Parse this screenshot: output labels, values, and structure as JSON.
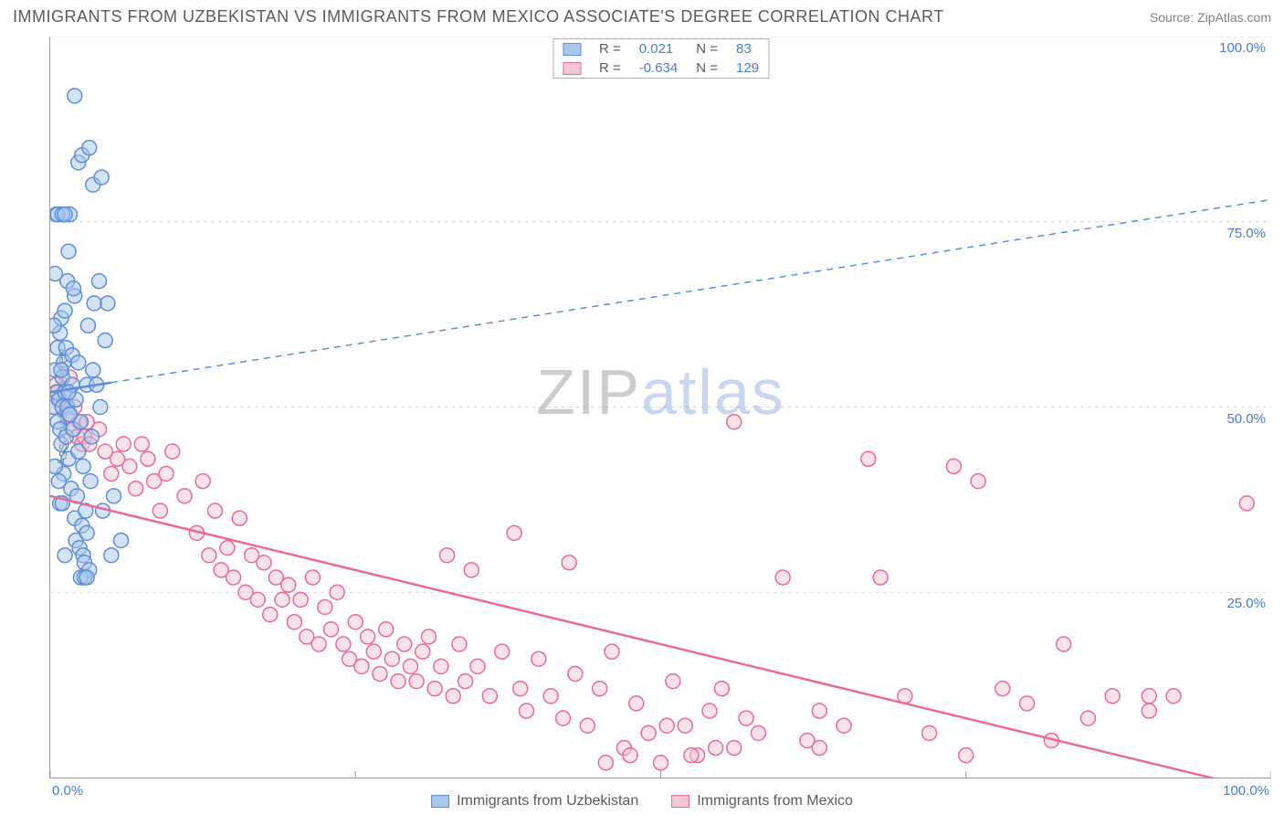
{
  "title": "IMMIGRANTS FROM UZBEKISTAN VS IMMIGRANTS FROM MEXICO ASSOCIATE'S DEGREE CORRELATION CHART",
  "source_prefix": "Source: ",
  "source_name": "ZipAtlas.com",
  "ylabel": "Associate's Degree",
  "watermark_a": "ZIP",
  "watermark_b": "atlas",
  "chart": {
    "type": "scatter",
    "background_color": "#ffffff",
    "grid_color": "#d8d8d8",
    "axis_color": "#999999",
    "tick_label_color": "#4a7bd0",
    "xlim": [
      0,
      100
    ],
    "ylim": [
      0,
      100
    ],
    "xticks": [
      0,
      25,
      50,
      75,
      100
    ],
    "yticks": [
      0,
      25,
      50,
      75,
      100
    ],
    "xtick_labels": [
      "0.0%",
      "",
      "",
      "",
      "100.0%"
    ],
    "ytick_labels": [
      "",
      "25.0%",
      "50.0%",
      "75.0%",
      "100.0%"
    ],
    "marker_radius": 8,
    "marker_stroke_width": 1.5,
    "marker_fill_opacity": 0.25,
    "label_fontsize": 15,
    "title_fontsize": 18
  },
  "series": [
    {
      "name": "Immigrants from Uzbekistan",
      "color_fill": "#a9c6ed",
      "color_stroke": "#5b8fd6",
      "R_label": "R =",
      "R": "0.021",
      "N_label": "N =",
      "N": "83",
      "trend": {
        "x1": 0,
        "y1": 52,
        "x2": 100,
        "y2": 78,
        "dash": "7,6",
        "width": 1.5,
        "solid_until_x": 5
      },
      "points": [
        [
          0.3,
          50
        ],
        [
          0.4,
          55
        ],
        [
          0.5,
          52
        ],
        [
          0.6,
          48
        ],
        [
          0.6,
          58
        ],
        [
          0.7,
          51
        ],
        [
          0.8,
          47
        ],
        [
          0.8,
          60
        ],
        [
          0.9,
          45
        ],
        [
          0.9,
          62
        ],
        [
          1.0,
          50
        ],
        [
          1.0,
          54
        ],
        [
          1.1,
          41
        ],
        [
          1.1,
          56
        ],
        [
          1.2,
          52
        ],
        [
          1.2,
          63
        ],
        [
          1.3,
          46
        ],
        [
          1.3,
          58
        ],
        [
          1.4,
          50
        ],
        [
          1.4,
          67
        ],
        [
          1.5,
          43
        ],
        [
          1.5,
          71
        ],
        [
          1.6,
          49
        ],
        [
          1.6,
          76
        ],
        [
          1.7,
          39
        ],
        [
          1.8,
          53
        ],
        [
          1.8,
          57
        ],
        [
          1.9,
          47
        ],
        [
          2.0,
          35
        ],
        [
          2.0,
          65
        ],
        [
          2.1,
          32
        ],
        [
          2.1,
          51
        ],
        [
          2.2,
          38
        ],
        [
          2.3,
          44
        ],
        [
          2.3,
          56
        ],
        [
          2.4,
          31
        ],
        [
          2.5,
          48
        ],
        [
          2.6,
          34
        ],
        [
          2.7,
          42
        ],
        [
          2.7,
          30
        ],
        [
          2.8,
          29
        ],
        [
          2.9,
          36
        ],
        [
          3.0,
          53
        ],
        [
          3.0,
          33
        ],
        [
          3.1,
          61
        ],
        [
          3.2,
          28
        ],
        [
          3.3,
          40
        ],
        [
          3.4,
          46
        ],
        [
          3.5,
          55
        ],
        [
          3.6,
          64
        ],
        [
          0.5,
          76
        ],
        [
          0.6,
          76
        ],
        [
          1.0,
          76
        ],
        [
          1.2,
          76
        ],
        [
          2.0,
          92
        ],
        [
          2.3,
          83
        ],
        [
          2.6,
          84
        ],
        [
          3.2,
          85
        ],
        [
          3.5,
          80
        ],
        [
          4.0,
          67
        ],
        [
          4.1,
          50
        ],
        [
          4.3,
          36
        ],
        [
          4.5,
          59
        ],
        [
          4.7,
          64
        ],
        [
          5.0,
          30
        ],
        [
          5.2,
          38
        ],
        [
          5.8,
          32
        ],
        [
          2.5,
          27
        ],
        [
          2.8,
          27
        ],
        [
          3.0,
          27
        ],
        [
          0.4,
          42
        ],
        [
          0.7,
          40
        ],
        [
          0.8,
          37
        ],
        [
          1.0,
          37
        ],
        [
          1.2,
          30
        ],
        [
          1.5,
          52
        ],
        [
          1.9,
          66
        ],
        [
          0.3,
          61
        ],
        [
          0.4,
          68
        ],
        [
          4.2,
          81
        ],
        [
          3.8,
          53
        ],
        [
          1.6,
          49
        ],
        [
          0.9,
          55
        ]
      ]
    },
    {
      "name": "Immigrants from Mexico",
      "color_fill": "#f5c6d3",
      "color_stroke": "#e86b93",
      "R_label": "R =",
      "R": "-0.634",
      "N_label": "N =",
      "N": "129",
      "trend": {
        "x1": 0,
        "y1": 38,
        "x2": 100,
        "y2": -2,
        "dash": "none",
        "width": 2.5
      },
      "points": [
        [
          0.5,
          53
        ],
        [
          0.6,
          52
        ],
        [
          0.8,
          51
        ],
        [
          1.0,
          50
        ],
        [
          1.2,
          52
        ],
        [
          1.4,
          49
        ],
        [
          1.6,
          54
        ],
        [
          1.8,
          47
        ],
        [
          2.0,
          50
        ],
        [
          2.2,
          46
        ],
        [
          2.4,
          48
        ],
        [
          2.6,
          45
        ],
        [
          2.8,
          46
        ],
        [
          3.0,
          48
        ],
        [
          3.2,
          45
        ],
        [
          4.0,
          47
        ],
        [
          4.5,
          44
        ],
        [
          5.0,
          41
        ],
        [
          5.5,
          43
        ],
        [
          6.0,
          45
        ],
        [
          6.5,
          42
        ],
        [
          7.0,
          39
        ],
        [
          7.5,
          45
        ],
        [
          8.0,
          43
        ],
        [
          8.5,
          40
        ],
        [
          9.0,
          36
        ],
        [
          9.5,
          41
        ],
        [
          10.0,
          44
        ],
        [
          11.0,
          38
        ],
        [
          12.0,
          33
        ],
        [
          12.5,
          40
        ],
        [
          13.0,
          30
        ],
        [
          13.5,
          36
        ],
        [
          14.0,
          28
        ],
        [
          14.5,
          31
        ],
        [
          15.0,
          27
        ],
        [
          15.5,
          35
        ],
        [
          16.0,
          25
        ],
        [
          16.5,
          30
        ],
        [
          17.0,
          24
        ],
        [
          17.5,
          29
        ],
        [
          18.0,
          22
        ],
        [
          18.5,
          27
        ],
        [
          19.0,
          24
        ],
        [
          19.5,
          26
        ],
        [
          20.0,
          21
        ],
        [
          20.5,
          24
        ],
        [
          21.0,
          19
        ],
        [
          21.5,
          27
        ],
        [
          22.0,
          18
        ],
        [
          22.5,
          23
        ],
        [
          23.0,
          20
        ],
        [
          23.5,
          25
        ],
        [
          24.0,
          18
        ],
        [
          24.5,
          16
        ],
        [
          25.0,
          21
        ],
        [
          25.5,
          15
        ],
        [
          26.0,
          19
        ],
        [
          26.5,
          17
        ],
        [
          27.0,
          14
        ],
        [
          27.5,
          20
        ],
        [
          28.0,
          16
        ],
        [
          28.5,
          13
        ],
        [
          29.0,
          18
        ],
        [
          29.5,
          15
        ],
        [
          30.0,
          13
        ],
        [
          30.5,
          17
        ],
        [
          31.0,
          19
        ],
        [
          31.5,
          12
        ],
        [
          32.0,
          15
        ],
        [
          32.5,
          30
        ],
        [
          33.0,
          11
        ],
        [
          33.5,
          18
        ],
        [
          34.0,
          13
        ],
        [
          34.5,
          28
        ],
        [
          35.0,
          15
        ],
        [
          36.0,
          11
        ],
        [
          37.0,
          17
        ],
        [
          38.0,
          33
        ],
        [
          38.5,
          12
        ],
        [
          39.0,
          9
        ],
        [
          40.0,
          16
        ],
        [
          41.0,
          11
        ],
        [
          42.0,
          8
        ],
        [
          42.5,
          29
        ],
        [
          43.0,
          14
        ],
        [
          44.0,
          7
        ],
        [
          45.0,
          12
        ],
        [
          45.5,
          2
        ],
        [
          46.0,
          17
        ],
        [
          47.0,
          4
        ],
        [
          48.0,
          10
        ],
        [
          49.0,
          6
        ],
        [
          50.0,
          2
        ],
        [
          51.0,
          13
        ],
        [
          52.0,
          7
        ],
        [
          53.0,
          3
        ],
        [
          54.0,
          9
        ],
        [
          55.0,
          12
        ],
        [
          56.0,
          4
        ],
        [
          56.0,
          48
        ],
        [
          57.0,
          8
        ],
        [
          58.0,
          6
        ],
        [
          60.0,
          27
        ],
        [
          62.0,
          5
        ],
        [
          63.0,
          9
        ],
        [
          63.0,
          4
        ],
        [
          65.0,
          7
        ],
        [
          67.0,
          43
        ],
        [
          68.0,
          27
        ],
        [
          70.0,
          11
        ],
        [
          72.0,
          6
        ],
        [
          74.0,
          42
        ],
        [
          75.0,
          3
        ],
        [
          76.0,
          40
        ],
        [
          78.0,
          12
        ],
        [
          80.0,
          10
        ],
        [
          82.0,
          5
        ],
        [
          83.0,
          18
        ],
        [
          85.0,
          8
        ],
        [
          87.0,
          11
        ],
        [
          90.0,
          11
        ],
        [
          90.0,
          9
        ],
        [
          92.0,
          11
        ],
        [
          98.0,
          37
        ],
        [
          47.5,
          3
        ],
        [
          50.5,
          7
        ],
        [
          52.5,
          3
        ],
        [
          54.5,
          4
        ]
      ]
    }
  ],
  "legend_bottom": [
    {
      "label": "Immigrants from Uzbekistan",
      "fill": "#a9c6ed",
      "stroke": "#5b8fd6"
    },
    {
      "label": "Immigrants from Mexico",
      "fill": "#f5c6d3",
      "stroke": "#e86b93"
    }
  ]
}
